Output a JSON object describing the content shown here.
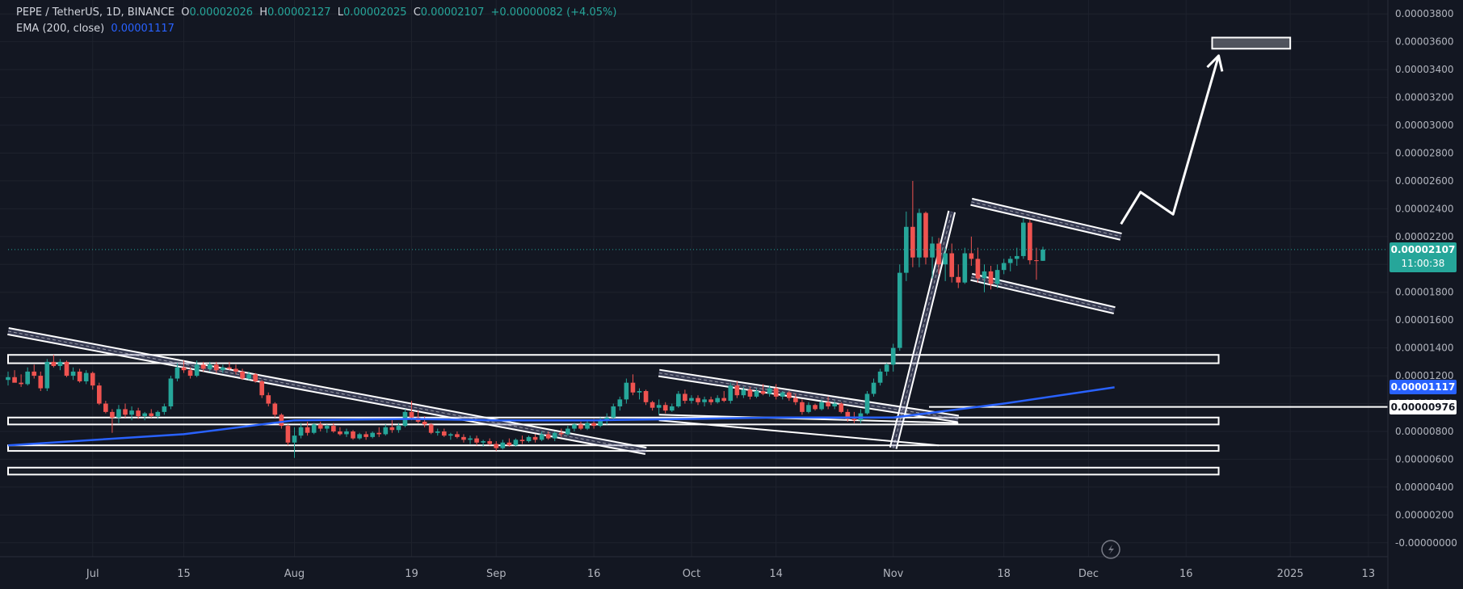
{
  "legend": {
    "symbol": "PEPE / TetherUS, 1D, BINANCE",
    "open_label": "O",
    "open": "0.00002026",
    "high_label": "H",
    "high": "0.00002127",
    "low_label": "L",
    "low": "0.00002025",
    "close_label": "C",
    "close": "0.00002107",
    "change": "+0.00000082 (+4.05%)",
    "ema_label": "EMA (200, close)",
    "ema_value": "0.00001117"
  },
  "price_tags": {
    "last_price": "0.00002107",
    "countdown": "11:00:38",
    "ema": "0.00001117",
    "level": "0.00000976"
  },
  "colors": {
    "background": "#131722",
    "up": "#26a69a",
    "down": "#ef5350",
    "ema": "#2962ff",
    "drawings": "#ffffff",
    "axis_text": "#b2b5be"
  },
  "chart_data": {
    "type": "candlestick",
    "symbol": "PEPE / TetherUS",
    "interval": "1D",
    "exchange": "BINANCE",
    "y_axis": {
      "ylim": [
        -1e-06,
        3.9e-05
      ],
      "tick_labels": [
        "0.00003800",
        "0.00003600",
        "0.00003400",
        "0.00003200",
        "0.00003000",
        "0.00002800",
        "0.00002600",
        "0.00002400",
        "0.00002200",
        "0.00002000",
        "0.00001800",
        "0.00001600",
        "0.00001400",
        "0.00001200",
        "0.00001000",
        "0.00000800",
        "0.00000600",
        "0.00000400",
        "0.00000200",
        "-0.00000000"
      ],
      "tick_values": [
        3.8e-05,
        3.6e-05,
        3.4e-05,
        3.2e-05,
        3e-05,
        2.8e-05,
        2.6e-05,
        2.4e-05,
        2.2e-05,
        2e-05,
        1.8e-05,
        1.6e-05,
        1.4e-05,
        1.2e-05,
        1e-05,
        8e-06,
        6e-06,
        4e-06,
        2e-06,
        0
      ]
    },
    "x_axis": {
      "start_date": "2024-06-18",
      "end_date": "2025-01-16",
      "tick_labels": [
        {
          "date": "2024-07-01",
          "label": "Jul"
        },
        {
          "date": "2024-07-15",
          "label": "15"
        },
        {
          "date": "2024-08-01",
          "label": "Aug"
        },
        {
          "date": "2024-08-19",
          "label": "19"
        },
        {
          "date": "2024-09-01",
          "label": "Sep"
        },
        {
          "date": "2024-09-16",
          "label": "16"
        },
        {
          "date": "2024-10-01",
          "label": "Oct"
        },
        {
          "date": "2024-10-14",
          "label": "14"
        },
        {
          "date": "2024-11-01",
          "label": "Nov"
        },
        {
          "date": "2024-11-18",
          "label": "18"
        },
        {
          "date": "2024-12-01",
          "label": "Dec"
        },
        {
          "date": "2024-12-16",
          "label": "16"
        },
        {
          "date": "2025-01-01",
          "label": "2025"
        },
        {
          "date": "2025-01-13",
          "label": "13"
        }
      ]
    },
    "first_candle_date": "2024-06-18",
    "candles": [
      [
        1.17e-05,
        1.23e-05,
        1.13e-05,
        1.19e-05
      ],
      [
        1.19e-05,
        1.24e-05,
        1.16e-05,
        1.15e-05
      ],
      [
        1.15e-05,
        1.21e-05,
        1.12e-05,
        1.14e-05
      ],
      [
        1.14e-05,
        1.26e-05,
        1.13e-05,
        1.23e-05
      ],
      [
        1.23e-05,
        1.28e-05,
        1.18e-05,
        1.2e-05
      ],
      [
        1.2e-05,
        1.23e-05,
        1.09e-05,
        1.11e-05
      ],
      [
        1.11e-05,
        1.32e-05,
        1.09e-05,
        1.3e-05
      ],
      [
        1.3e-05,
        1.35e-05,
        1.26e-05,
        1.27e-05
      ],
      [
        1.27e-05,
        1.32e-05,
        1.24e-05,
        1.3e-05
      ],
      [
        1.3e-05,
        1.31e-05,
        1.19e-05,
        1.2e-05
      ],
      [
        1.2e-05,
        1.26e-05,
        1.17e-05,
        1.23e-05
      ],
      [
        1.23e-05,
        1.25e-05,
        1.15e-05,
        1.16e-05
      ],
      [
        1.16e-05,
        1.24e-05,
        1.14e-05,
        1.22e-05
      ],
      [
        1.22e-05,
        1.23e-05,
        1.1e-05,
        1.13e-05
      ],
      [
        1.13e-05,
        1.15e-05,
        9.9e-06,
        1e-05
      ],
      [
        1e-05,
        1.02e-05,
        9.3e-06,
        9.4e-06
      ],
      [
        9.4e-06,
        9.6e-06,
        7.9e-06,
        9e-06
      ],
      [
        9e-06,
        9.9e-06,
        8.6e-06,
        9.6e-06
      ],
      [
        9.6e-06,
        1e-05,
        9e-06,
        9.2e-06
      ],
      [
        9.2e-06,
        9.8e-06,
        8.8e-06,
        9.5e-06
      ],
      [
        9.5e-06,
        9.7e-06,
        8.9e-06,
        9.1e-06
      ],
      [
        9.1e-06,
        9.4e-06,
        8.8e-06,
        9.3e-06
      ],
      [
        9.3e-06,
        9.6e-06,
        9e-06,
        9.1e-06
      ],
      [
        9.1e-06,
        9.5e-06,
        8.9e-06,
        9.4e-06
      ],
      [
        9.4e-06,
        1e-05,
        9.2e-06,
        9.8e-06
      ],
      [
        9.8e-06,
        1.2e-05,
        9.6e-06,
        1.18e-05
      ],
      [
        1.18e-05,
        1.29e-05,
        1.16e-05,
        1.26e-05
      ],
      [
        1.26e-05,
        1.31e-05,
        1.22e-05,
        1.24e-05
      ],
      [
        1.24e-05,
        1.26e-05,
        1.18e-05,
        1.2e-05
      ],
      [
        1.2e-05,
        1.31e-05,
        1.19e-05,
        1.28e-05
      ],
      [
        1.28e-05,
        1.3e-05,
        1.23e-05,
        1.25e-05
      ],
      [
        1.25e-05,
        1.3e-05,
        1.23e-05,
        1.28e-05
      ],
      [
        1.28e-05,
        1.3e-05,
        1.22e-05,
        1.24e-05
      ],
      [
        1.24e-05,
        1.28e-05,
        1.22e-05,
        1.26e-05
      ],
      [
        1.26e-05,
        1.3e-05,
        1.24e-05,
        1.25e-05
      ],
      [
        1.25e-05,
        1.28e-05,
        1.21e-05,
        1.23e-05
      ],
      [
        1.23e-05,
        1.25e-05,
        1.17e-05,
        1.18e-05
      ],
      [
        1.18e-05,
        1.23e-05,
        1.17e-05,
        1.21e-05
      ],
      [
        1.21e-05,
        1.22e-05,
        1.15e-05,
        1.16e-05
      ],
      [
        1.16e-05,
        1.17e-05,
        1.04e-05,
        1.06e-05
      ],
      [
        1.06e-05,
        1.08e-05,
        9.8e-06,
        1e-05
      ],
      [
        1e-05,
        1.01e-05,
        9e-06,
        9.2e-06
      ],
      [
        9.2e-06,
        9.3e-06,
        8.2e-06,
        8.4e-06
      ],
      [
        8.4e-06,
        8.5e-06,
        7e-06,
        7.2e-06
      ],
      [
        7.2e-06,
        8.3e-06,
        6.1e-06,
        7.7e-06
      ],
      [
        7.7e-06,
        8.6e-06,
        7.5e-06,
        8.3e-06
      ],
      [
        8.3e-06,
        8.7e-06,
        7.7e-06,
        7.9e-06
      ],
      [
        7.9e-06,
        8.6e-06,
        7.8e-06,
        8.5e-06
      ],
      [
        8.5e-06,
        8.7e-06,
        8e-06,
        8.2e-06
      ],
      [
        8.2e-06,
        8.5e-06,
        7.9e-06,
        8.4e-06
      ],
      [
        8.4e-06,
        8.6e-06,
        7.9e-06,
        8e-06
      ],
      [
        8e-06,
        8.3e-06,
        7.7e-06,
        7.8e-06
      ],
      [
        7.8e-06,
        8.2e-06,
        7.6e-06,
        8e-06
      ],
      [
        8e-06,
        8.1e-06,
        7.4e-06,
        7.5e-06
      ],
      [
        7.5e-06,
        7.9e-06,
        7.4e-06,
        7.8e-06
      ],
      [
        7.8e-06,
        8e-06,
        7.4e-06,
        7.6e-06
      ],
      [
        7.6e-06,
        8e-06,
        7.5e-06,
        7.9e-06
      ],
      [
        7.9e-06,
        8.3e-06,
        7.6e-06,
        7.8e-06
      ],
      [
        7.8e-06,
        8.5e-06,
        7.7e-06,
        8.3e-06
      ],
      [
        8.3e-06,
        8.9e-06,
        7.9e-06,
        8.1e-06
      ],
      [
        8.1e-06,
        8.6e-06,
        7.9e-06,
        8.4e-06
      ],
      [
        8.4e-06,
        9.6e-06,
        8.3e-06,
        9.4e-06
      ],
      [
        9.4e-06,
        1.02e-05,
        8.8e-06,
        9e-06
      ],
      [
        9e-06,
        9.5e-06,
        8.6e-06,
        8.7e-06
      ],
      [
        8.7e-06,
        9.1e-06,
        8.3e-06,
        8.5e-06
      ],
      [
        8.5e-06,
        8.6e-06,
        7.8e-06,
        7.9e-06
      ],
      [
        7.9e-06,
        8.2e-06,
        7.7e-06,
        8e-06
      ],
      [
        8e-06,
        8.2e-06,
        7.6e-06,
        7.7e-06
      ],
      [
        7.7e-06,
        7.9e-06,
        7.4e-06,
        7.8e-06
      ],
      [
        7.8e-06,
        8e-06,
        7.5e-06,
        7.6e-06
      ],
      [
        7.6e-06,
        7.8e-06,
        7.2e-06,
        7.4e-06
      ],
      [
        7.4e-06,
        7.7e-06,
        7.1e-06,
        7.5e-06
      ],
      [
        7.5e-06,
        7.7e-06,
        7e-06,
        7.2e-06
      ],
      [
        7.2e-06,
        7.4e-06,
        6.9e-06,
        7.3e-06
      ],
      [
        7.3e-06,
        7.5e-06,
        7e-06,
        7.1e-06
      ],
      [
        7.1e-06,
        7.3e-06,
        6.6e-06,
        6.8e-06
      ],
      [
        6.8e-06,
        7.4e-06,
        6.7e-06,
        7.2e-06
      ],
      [
        7.2e-06,
        7.5e-06,
        6.9e-06,
        7e-06
      ],
      [
        7e-06,
        7.5e-06,
        6.9e-06,
        7.4e-06
      ],
      [
        7.4e-06,
        7.7e-06,
        7.1e-06,
        7.3e-06
      ],
      [
        7.3e-06,
        7.7e-06,
        7.2e-06,
        7.6e-06
      ],
      [
        7.6e-06,
        7.8e-06,
        7.2e-06,
        7.4e-06
      ],
      [
        7.4e-06,
        8e-06,
        7.3e-06,
        7.8e-06
      ],
      [
        7.8e-06,
        8e-06,
        7.4e-06,
        7.5e-06
      ],
      [
        7.5e-06,
        8e-06,
        7.3e-06,
        7.9e-06
      ],
      [
        7.9e-06,
        8.2e-06,
        7.6e-06,
        7.8e-06
      ],
      [
        7.8e-06,
        8.4e-06,
        7.7e-06,
        8.2e-06
      ],
      [
        8.2e-06,
        8.6e-06,
        8e-06,
        8.5e-06
      ],
      [
        8.5e-06,
        8.7e-06,
        8.1e-06,
        8.2e-06
      ],
      [
        8.2e-06,
        8.8e-06,
        8.1e-06,
        8.6e-06
      ],
      [
        8.6e-06,
        8.9e-06,
        8.2e-06,
        8.4e-06
      ],
      [
        8.4e-06,
        9e-06,
        8.3e-06,
        8.8e-06
      ],
      [
        8.8e-06,
        9.3e-06,
        8.5e-06,
        9e-06
      ],
      [
        9e-06,
        1e-05,
        8.8e-06,
        9.8e-06
      ],
      [
        9.8e-06,
        1.05e-05,
        9.5e-06,
        1.03e-05
      ],
      [
        1.03e-05,
        1.18e-05,
        1e-05,
        1.15e-05
      ],
      [
        1.15e-05,
        1.21e-05,
        1.06e-05,
        1.08e-05
      ],
      [
        1.08e-05,
        1.11e-05,
        1.03e-05,
        1.09e-05
      ],
      [
        1.09e-05,
        1.1e-05,
        9.9e-06,
        1.01e-05
      ],
      [
        1.01e-05,
        1.02e-05,
        9.5e-06,
        9.7e-06
      ],
      [
        9.7e-06,
        1.03e-05,
        9.2e-06,
        9.9e-06
      ],
      [
        9.9e-06,
        1.01e-05,
        9.3e-06,
        9.5e-06
      ],
      [
        9.5e-06,
        1e-05,
        9.4e-06,
        9.8e-06
      ],
      [
        9.8e-06,
        1.09e-05,
        9.7e-06,
        1.07e-05
      ],
      [
        1.07e-05,
        1.1e-05,
        1e-05,
        1.02e-05
      ],
      [
        1.02e-05,
        1.06e-05,
        1e-05,
        1.04e-05
      ],
      [
        1.04e-05,
        1.06e-05,
        9.9e-06,
        1.01e-05
      ],
      [
        1.01e-05,
        1.05e-05,
        9.8e-06,
        1.03e-05
      ],
      [
        1.03e-05,
        1.05e-05,
        9.9e-06,
        1.01e-05
      ],
      [
        1.01e-05,
        1.06e-05,
        1e-05,
        1.04e-05
      ],
      [
        1.04e-05,
        1.09e-05,
        1.01e-05,
        1.02e-05
      ],
      [
        1.02e-05,
        1.15e-05,
        1e-05,
        1.13e-05
      ],
      [
        1.13e-05,
        1.16e-05,
        1.04e-05,
        1.06e-05
      ],
      [
        1.06e-05,
        1.12e-05,
        1.04e-05,
        1.1e-05
      ],
      [
        1.1e-05,
        1.12e-05,
        1.03e-05,
        1.05e-05
      ],
      [
        1.05e-05,
        1.11e-05,
        1.04e-05,
        1.09e-05
      ],
      [
        1.09e-05,
        1.14e-05,
        1.06e-05,
        1.07e-05
      ],
      [
        1.07e-05,
        1.13e-05,
        1.05e-05,
        1.11e-05
      ],
      [
        1.11e-05,
        1.14e-05,
        1.03e-05,
        1.05e-05
      ],
      [
        1.05e-05,
        1.09e-05,
        1.03e-05,
        1.08e-05
      ],
      [
        1.08e-05,
        1.09e-05,
        1.02e-05,
        1.04e-05
      ],
      [
        1.04e-05,
        1.07e-05,
        9.9e-06,
        1.01e-05
      ],
      [
        1.01e-05,
        1.03e-05,
        9.2e-06,
        9.4e-06
      ],
      [
        9.4e-06,
        1.01e-05,
        9.3e-06,
        9.9e-06
      ],
      [
        9.9e-06,
        1e-05,
        9.5e-06,
        9.6e-06
      ],
      [
        9.6e-06,
        1.03e-05,
        9.5e-06,
        1.01e-05
      ],
      [
        1.01e-05,
        1.05e-05,
        9.6e-06,
        9.8e-06
      ],
      [
        9.8e-06,
        1.02e-05,
        9.6e-06,
        1e-05
      ],
      [
        1e-05,
        1.01e-05,
        9.3e-06,
        9.4e-06
      ],
      [
        9.4e-06,
        9.6e-06,
        8.7e-06,
        8.9e-06
      ],
      [
        8.9e-06,
        9.4e-06,
        8.6e-06,
        8.8e-06
      ],
      [
        8.8e-06,
        9.6e-06,
        8.6e-06,
        9.3e-06
      ],
      [
        9.3e-06,
        1.09e-05,
        9.2e-06,
        1.07e-05
      ],
      [
        1.07e-05,
        1.18e-05,
        1.05e-05,
        1.15e-05
      ],
      [
        1.15e-05,
        1.25e-05,
        1.13e-05,
        1.23e-05
      ],
      [
        1.23e-05,
        1.29e-05,
        1.2e-05,
        1.28e-05
      ],
      [
        1.28e-05,
        1.43e-05,
        1.23e-05,
        1.4e-05
      ],
      [
        1.4e-05,
        2e-05,
        1.38e-05,
        1.94e-05
      ],
      [
        1.94e-05,
        2.38e-05,
        1.88e-05,
        2.27e-05
      ],
      [
        2.27e-05,
        2.6e-05,
        1.98e-05,
        2.05e-05
      ],
      [
        2.05e-05,
        2.4e-05,
        1.98e-05,
        2.37e-05
      ],
      [
        2.37e-05,
        2.38e-05,
        2e-05,
        2.05e-05
      ],
      [
        2.05e-05,
        2.2e-05,
        1.9e-05,
        2.15e-05
      ],
      [
        2.15e-05,
        2.19e-05,
        1.93e-05,
        2e-05
      ],
      [
        2e-05,
        2.12e-05,
        1.88e-05,
        2.08e-05
      ],
      [
        2.08e-05,
        2.15e-05,
        1.87e-05,
        1.91e-05
      ],
      [
        1.91e-05,
        2e-05,
        1.83e-05,
        1.87e-05
      ],
      [
        1.87e-05,
        2.12e-05,
        1.86e-05,
        2.08e-05
      ],
      [
        2.08e-05,
        2.2e-05,
        1.99e-05,
        2.04e-05
      ],
      [
        2.04e-05,
        2.12e-05,
        1.87e-05,
        1.9e-05
      ],
      [
        1.9e-05,
        2e-05,
        1.8e-05,
        1.95e-05
      ],
      [
        1.95e-05,
        1.99e-05,
        1.82e-05,
        1.86e-05
      ],
      [
        1.86e-05,
        2e-05,
        1.83e-05,
        1.96e-05
      ],
      [
        1.96e-05,
        2.04e-05,
        1.93e-05,
        2.01e-05
      ],
      [
        2.01e-05,
        2.06e-05,
        1.95e-05,
        2.04e-05
      ],
      [
        2.04e-05,
        2.12e-05,
        1.99e-05,
        2.06e-05
      ],
      [
        2.06e-05,
        2.33e-05,
        2.04e-05,
        2.3e-05
      ],
      [
        2.3e-05,
        2.32e-05,
        2e-05,
        2.03e-05
      ],
      [
        2.03e-05,
        2.12e-05,
        1.89e-05,
        2.026e-05
      ],
      [
        2.026e-05,
        2.127e-05,
        2.025e-05,
        2.107e-05
      ]
    ],
    "ema": {
      "name": "EMA (200, close)",
      "last_value": 1.117e-05,
      "points": [
        [
          "2024-06-18",
          7e-06
        ],
        [
          "2024-07-15",
          7.8e-06
        ],
        [
          "2024-08-01",
          8.8e-06
        ],
        [
          "2024-08-19",
          8.9e-06
        ],
        [
          "2024-09-01",
          8.8e-06
        ],
        [
          "2024-09-16",
          8.8e-06
        ],
        [
          "2024-10-01",
          8.9e-06
        ],
        [
          "2024-10-14",
          9e-06
        ],
        [
          "2024-11-01",
          9e-06
        ],
        [
          "2024-11-18",
          1e-05
        ],
        [
          "2024-12-05",
          1.117e-05
        ]
      ]
    },
    "horizontal_zones": [
      {
        "from": "2024-06-18",
        "to": "2024-12-21",
        "low": 1.29e-05,
        "high": 1.35e-05
      },
      {
        "from": "2024-06-18",
        "to": "2024-12-21",
        "low": 8.5e-06,
        "high": 9e-06
      },
      {
        "from": "2024-06-18",
        "to": "2024-12-21",
        "low": 6.6e-06,
        "high": 7e-06
      },
      {
        "from": "2024-06-18",
        "to": "2024-12-21",
        "low": 4.9e-06,
        "high": 5.4e-06
      },
      {
        "from": "2024-12-20",
        "to": "2025-01-01",
        "low": 3.55e-05,
        "high": 3.63e-05
      }
    ],
    "level_line": 9.76e-06,
    "trendlines": [
      {
        "from": [
          "2024-06-18",
          1.52e-05
        ],
        "to": [
          "2024-09-24",
          6.6e-06
        ],
        "double": true
      },
      {
        "from": [
          "2024-09-26",
          1.22e-05
        ],
        "to": [
          "2024-11-11",
          8.9e-06
        ],
        "double": true
      },
      {
        "from": [
          "2024-09-26",
          9.2e-06
        ],
        "to": [
          "2024-11-11",
          8.6e-06
        ],
        "double": false
      },
      {
        "from": [
          "2024-09-26",
          8.8e-06
        ],
        "to": [
          "2024-11-08",
          7e-06
        ],
        "double": false
      },
      {
        "from": [
          "2024-11-01",
          6.8e-06
        ],
        "to": [
          "2024-11-10",
          2.38e-05
        ],
        "double": true
      },
      {
        "from": [
          "2024-11-13",
          2.45e-05
        ],
        "to": [
          "2024-12-06",
          2.2e-05
        ],
        "double": true
      },
      {
        "from": [
          "2024-11-13",
          1.91e-05
        ],
        "to": [
          "2024-12-05",
          1.67e-05
        ],
        "double": true
      }
    ],
    "projection_path": [
      [
        "2024-12-06",
        2.29e-05
      ],
      [
        "2024-12-09",
        2.52e-05
      ],
      [
        "2024-12-14",
        2.36e-05
      ],
      [
        "2024-12-21",
        3.5e-05
      ]
    ]
  }
}
